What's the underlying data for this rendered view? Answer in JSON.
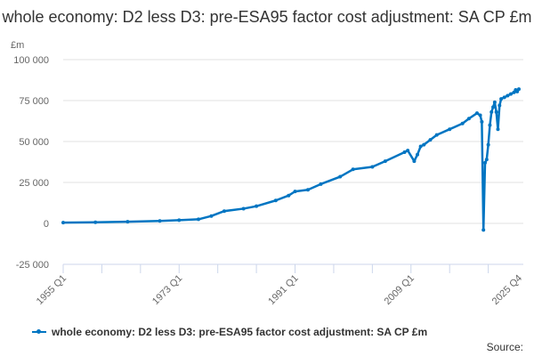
{
  "chart_data": {
    "type": "line",
    "title": "whole economy: D2 less D3: pre-ESA95 factor cost adjustment: SA CP £m",
    "ylabel": "£m",
    "ylim": [
      -25000,
      100000
    ],
    "yticks": [
      -25000,
      0,
      25000,
      50000,
      75000,
      100000
    ],
    "ytick_labels": [
      "-25 000",
      "0",
      "25 000",
      "50 000",
      "75 000",
      "100 000"
    ],
    "xticks": [
      "1955 Q1",
      "1973 Q1",
      "1991 Q1",
      "2009 Q1",
      "2025 Q4"
    ],
    "xlim": [
      "1955 Q1",
      "2025 Q4"
    ],
    "grid": true,
    "legend_placement": "bottom",
    "series": [
      {
        "name": "whole economy: D2 less D3: pre-ESA95 factor cost adjustment: SA CP £m",
        "color": "#0075c2",
        "points": [
          [
            "1955 Q1",
            500
          ],
          [
            "1960 Q1",
            700
          ],
          [
            "1965 Q1",
            1000
          ],
          [
            "1970 Q1",
            1500
          ],
          [
            "1973 Q1",
            2000
          ],
          [
            "1976 Q1",
            2500
          ],
          [
            "1978 Q1",
            4500
          ],
          [
            "1980 Q1",
            7500
          ],
          [
            "1983 Q1",
            9000
          ],
          [
            "1985 Q1",
            10500
          ],
          [
            "1988 Q1",
            14000
          ],
          [
            "1990 Q1",
            17000
          ],
          [
            "1991 Q1",
            19500
          ],
          [
            "1993 Q1",
            20500
          ],
          [
            "1995 Q1",
            24000
          ],
          [
            "1998 Q1",
            28500
          ],
          [
            "2000 Q1",
            33000
          ],
          [
            "2003 Q1",
            34500
          ],
          [
            "2005 Q1",
            38000
          ],
          [
            "2008 Q1",
            43500
          ],
          [
            "2008 Q3",
            44500
          ],
          [
            "2009 Q3",
            38000
          ],
          [
            "2010 Q1",
            42000
          ],
          [
            "2010 Q3",
            47000
          ],
          [
            "2011 Q1",
            48000
          ],
          [
            "2012 Q1",
            51000
          ],
          [
            "2013 Q1",
            54000
          ],
          [
            "2015 Q1",
            57500
          ],
          [
            "2017 Q1",
            61000
          ],
          [
            "2018 Q1",
            64000
          ],
          [
            "2019 Q2",
            67300
          ],
          [
            "2019 Q4",
            66000
          ],
          [
            "2020 Q1",
            62000
          ],
          [
            "2020 Q2",
            -4000
          ],
          [
            "2020 Q3",
            37000
          ],
          [
            "2020 Q4",
            39000
          ],
          [
            "2021 Q1",
            48000
          ],
          [
            "2021 Q2",
            60000
          ],
          [
            "2021 Q3",
            68000
          ],
          [
            "2021 Q4",
            71000
          ],
          [
            "2022 Q1",
            74000
          ],
          [
            "2022 Q2",
            68000
          ],
          [
            "2022 Q3",
            57500
          ],
          [
            "2022 Q4",
            72000
          ],
          [
            "2023 Q1",
            76000
          ],
          [
            "2023 Q3",
            77000
          ],
          [
            "2024 Q1",
            78000
          ],
          [
            "2024 Q3",
            79000
          ],
          [
            "2025 Q1",
            80000
          ],
          [
            "2025 Q2",
            81500
          ],
          [
            "2025 Q3",
            80500
          ],
          [
            "2025 Q4",
            82000
          ]
        ]
      }
    ]
  },
  "source_label": "Source:"
}
